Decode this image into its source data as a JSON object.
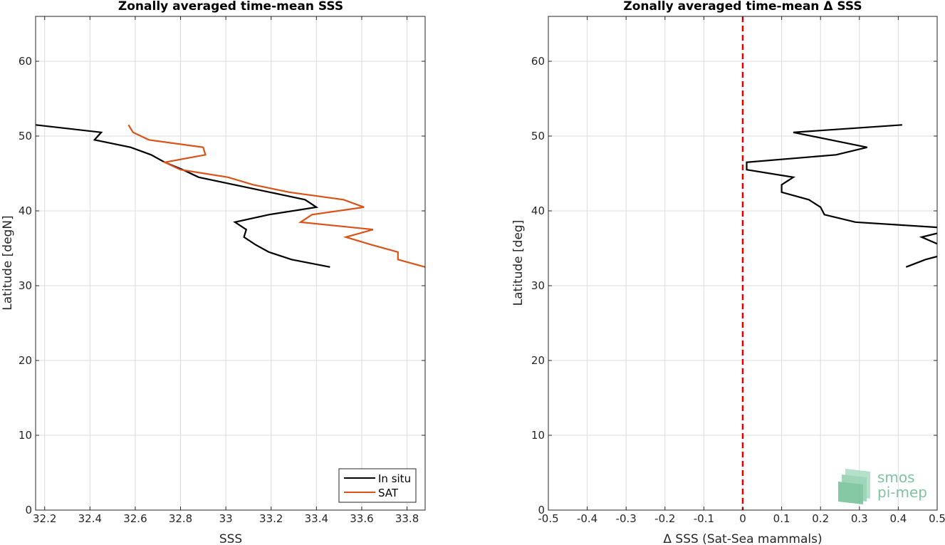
{
  "chart_data": [
    {
      "type": "line",
      "title": "Zonally averaged time-mean SSS",
      "xlabel": "SSS",
      "ylabel": "Latitude [degN]",
      "xlim": [
        32.16,
        33.88
      ],
      "ylim": [
        0,
        66
      ],
      "xticks": [
        "32.2",
        "32.4",
        "32.6",
        "32.8",
        "33",
        "33.2",
        "33.4",
        "33.6",
        "33.8"
      ],
      "yticks": [
        "0",
        "10",
        "20",
        "30",
        "40",
        "50",
        "60"
      ],
      "grid": true,
      "legend": "bottom-right",
      "series": [
        {
          "name": "In situ",
          "color": "#000000",
          "points": [
            [
              32.16,
              51.5
            ],
            [
              32.45,
              50.5
            ],
            [
              32.42,
              49.5
            ],
            [
              32.58,
              48.5
            ],
            [
              32.67,
              47.5
            ],
            [
              32.73,
              46.5
            ],
            [
              32.81,
              45.5
            ],
            [
              32.88,
              44.5
            ],
            [
              33.35,
              41.5
            ],
            [
              33.4,
              40.5
            ],
            [
              33.19,
              39.5
            ],
            [
              33.04,
              38.5
            ],
            [
              33.09,
              37.5
            ],
            [
              33.08,
              36.5
            ],
            [
              33.13,
              35.5
            ],
            [
              33.19,
              34.5
            ],
            [
              33.29,
              33.5
            ],
            [
              33.46,
              32.5
            ]
          ]
        },
        {
          "name": "SAT",
          "color": "#d95319",
          "points": [
            [
              32.57,
              51.5
            ],
            [
              32.59,
              50.5
            ],
            [
              32.66,
              49.5
            ],
            [
              32.9,
              48.5
            ],
            [
              32.91,
              47.5
            ],
            [
              32.73,
              46.5
            ],
            [
              32.8,
              45.5
            ],
            [
              33.01,
              44.5
            ],
            [
              33.12,
              43.5
            ],
            [
              33.28,
              42.5
            ],
            [
              33.52,
              41.5
            ],
            [
              33.61,
              40.5
            ],
            [
              33.38,
              39.5
            ],
            [
              33.33,
              38.5
            ],
            [
              33.65,
              37.5
            ],
            [
              33.53,
              36.5
            ],
            [
              33.64,
              35.5
            ],
            [
              33.76,
              34.5
            ],
            [
              33.76,
              33.5
            ],
            [
              33.88,
              32.5
            ]
          ]
        }
      ]
    },
    {
      "type": "line",
      "title": "Zonally averaged time-mean Δ SSS",
      "xlabel": "Δ SSS (Sat-Sea mammals)",
      "ylabel": "Latitude [deg]",
      "xlim": [
        -0.5,
        0.5
      ],
      "ylim": [
        0,
        66
      ],
      "xticks": [
        "-0.5",
        "-0.4",
        "-0.3",
        "-0.2",
        "-0.1",
        "0",
        "0.1",
        "0.2",
        "0.3",
        "0.4",
        "0.5"
      ],
      "yticks": [
        "0",
        "10",
        "20",
        "30",
        "40",
        "50",
        "60"
      ],
      "grid": true,
      "reference_line": {
        "x": 0,
        "color": "#e00000",
        "style": "dashed"
      },
      "series": [
        {
          "color": "#000000",
          "points": [
            [
              0.41,
              51.5
            ],
            [
              0.13,
              50.5
            ],
            [
              0.32,
              48.5
            ],
            [
              0.24,
              47.5
            ],
            [
              0.01,
              46.5
            ],
            [
              0.01,
              45.5
            ],
            [
              0.13,
              44.5
            ],
            [
              0.1,
              43.5
            ],
            [
              0.1,
              42.5
            ],
            [
              0.17,
              41.5
            ],
            [
              0.2,
              40.5
            ],
            [
              0.21,
              39.5
            ],
            [
              0.29,
              38.5
            ],
            [
              0.5,
              37.8
            ]
          ]
        },
        {
          "color": "#000000",
          "points": [
            [
              0.5,
              37.0
            ],
            [
              0.46,
              36.5
            ],
            [
              0.5,
              35.6
            ]
          ]
        },
        {
          "color": "#000000",
          "points": [
            [
              0.5,
              33.9
            ],
            [
              0.47,
              33.5
            ],
            [
              0.42,
              32.5
            ]
          ]
        }
      ]
    }
  ],
  "watermark": {
    "line1": "smos",
    "line2": "pi-mep",
    "color": "#7fc4a0"
  }
}
